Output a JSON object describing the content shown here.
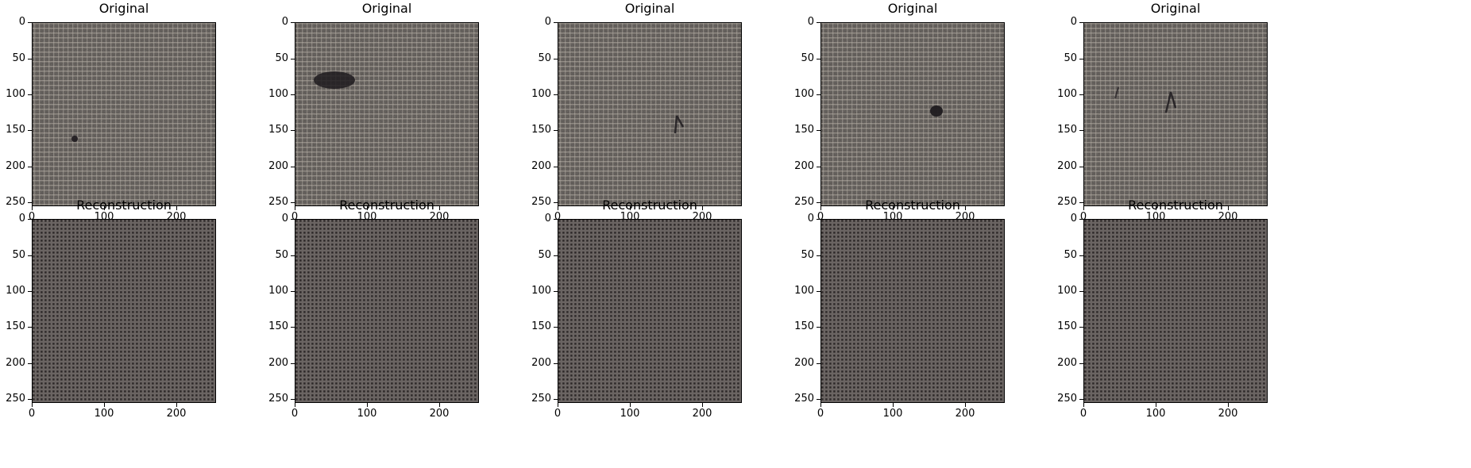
{
  "figure": {
    "axes": {
      "y_ticks": [
        "0",
        "50",
        "100",
        "150",
        "200",
        "250"
      ],
      "x_ticks": [
        "0",
        "100",
        "200"
      ],
      "extent": [
        0,
        255
      ]
    },
    "rows": [
      {
        "name": "original",
        "panels": [
          {
            "title": "Original",
            "texture": "burlap",
            "defect": "small-dark-spot"
          },
          {
            "title": "Original",
            "texture": "burlap",
            "defect": "dark-stain"
          },
          {
            "title": "Original",
            "texture": "burlap",
            "defect": "thread-mark"
          },
          {
            "title": "Original",
            "texture": "burlap",
            "defect": "hole"
          },
          {
            "title": "Original",
            "texture": "burlap",
            "defect": "thread-mark-pair"
          }
        ]
      },
      {
        "name": "reconstruction",
        "panels": [
          {
            "title": "Reconstruction",
            "texture": "regular-grid"
          },
          {
            "title": "Reconstruction",
            "texture": "regular-grid"
          },
          {
            "title": "Reconstruction",
            "texture": "regular-grid"
          },
          {
            "title": "Reconstruction",
            "texture": "regular-grid"
          },
          {
            "title": "Reconstruction",
            "texture": "regular-grid"
          }
        ]
      }
    ],
    "colors": {
      "burlap_base": "#55504c",
      "burlap_thread": "#b7afa4",
      "recon_base": "#6a6462",
      "recon_hole": "#2a2626",
      "defect": "#1f1b1f"
    }
  }
}
